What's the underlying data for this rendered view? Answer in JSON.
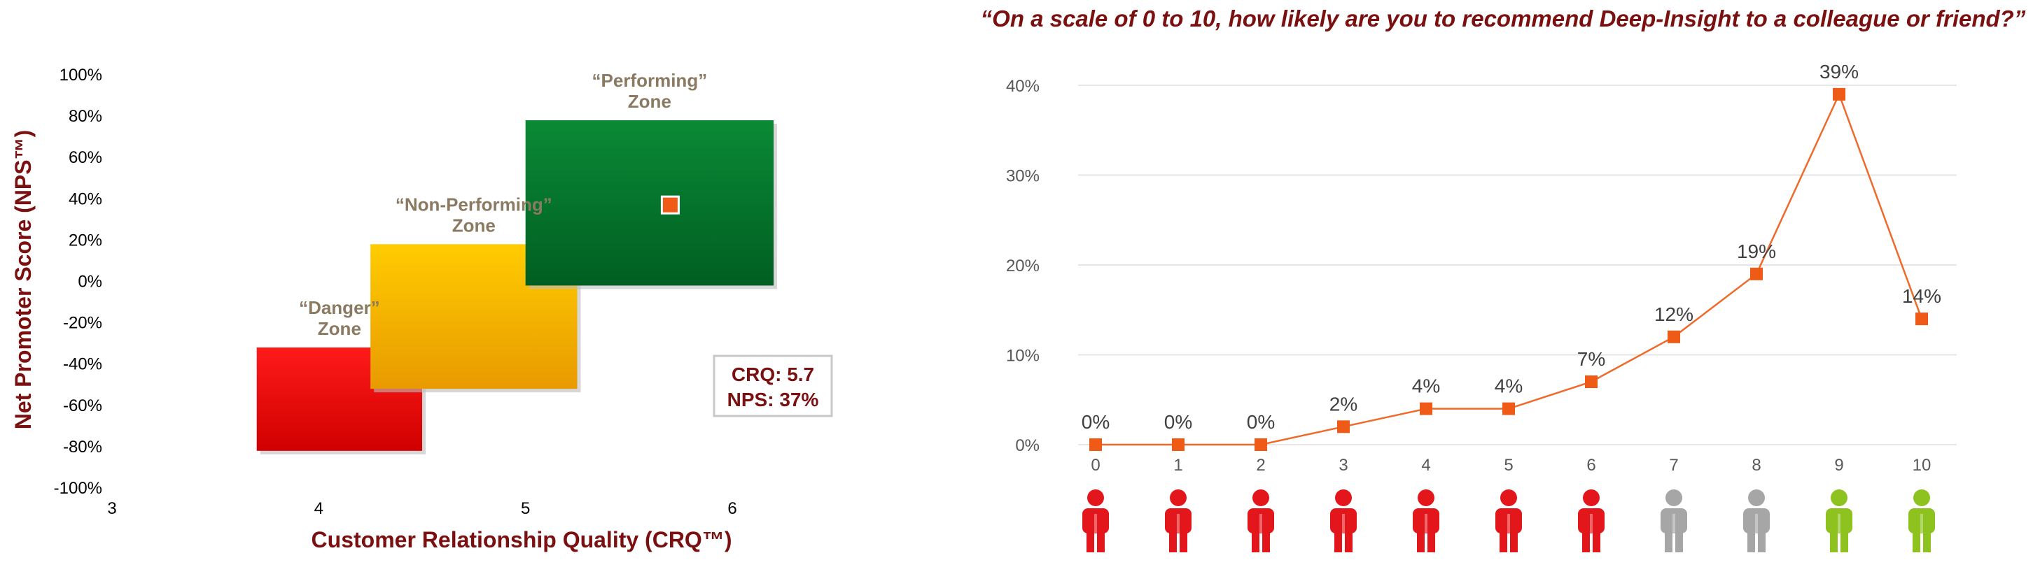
{
  "colors": {
    "dark_red": "#7b1010",
    "zone_label": "#8a7a62",
    "marker": "#ef5a17",
    "line": "#ef6a2a",
    "detractor": "#e3161c",
    "passive": "#a6a6a6",
    "promoter": "#8dc21f",
    "danger_zone": "#ee1111",
    "nonperforming_zone": "#f5b800",
    "performing_zone": "#0b7a33"
  },
  "chart_data": [
    {
      "type": "scatter",
      "xlabel": "Customer Relationship Quality (CRQ™)",
      "ylabel": "Net Promoter Score (NPS™)",
      "xlim": [
        3,
        6
      ],
      "ylim": [
        -100,
        100
      ],
      "x_ticks": [
        "3",
        "4",
        "5",
        "6"
      ],
      "y_ticks": [
        "100%",
        "80%",
        "60%",
        "40%",
        "20%",
        "0%",
        "-20%",
        "-40%",
        "-60%",
        "-80%",
        "-100%"
      ],
      "zones": [
        {
          "key": "danger",
          "label_line1": "“Danger”",
          "label_line2": "Zone",
          "x0": 3.7,
          "x1": 4.5,
          "y0": -82,
          "y1": -32
        },
        {
          "key": "nonperforming",
          "label_line1": "“Non-Performing”",
          "label_line2": "Zone",
          "x0": 4.25,
          "x1": 5.25,
          "y0": -52,
          "y1": 18
        },
        {
          "key": "performing",
          "label_line1": "“Performing”",
          "label_line2": "Zone",
          "x0": 5.0,
          "x1": 6.2,
          "y0": -2,
          "y1": 78
        }
      ],
      "point": {
        "x": 5.7,
        "y": 37
      },
      "annotation": {
        "line1": "CRQ: 5.7",
        "line2": "NPS: 37%"
      }
    },
    {
      "type": "line",
      "title": "“On a scale of 0 to 10, how likely are you to recommend Deep-Insight to a colleague or friend?”",
      "x": [
        0,
        1,
        2,
        3,
        4,
        5,
        6,
        7,
        8,
        9,
        10
      ],
      "x_labels": [
        "0",
        "1",
        "2",
        "3",
        "4",
        "5",
        "6",
        "7",
        "8",
        "9",
        "10"
      ],
      "values": [
        0,
        0,
        0,
        2,
        4,
        4,
        7,
        12,
        19,
        39,
        14
      ],
      "data_labels": [
        "0%",
        "0%",
        "0%",
        "2%",
        "4%",
        "4%",
        "7%",
        "12%",
        "19%",
        "39%",
        "14%"
      ],
      "ylim": [
        0,
        40
      ],
      "y_ticks": [
        "0%",
        "10%",
        "20%",
        "30%",
        "40%"
      ],
      "grid": true,
      "person_groups": [
        "detractor",
        "detractor",
        "detractor",
        "detractor",
        "detractor",
        "detractor",
        "detractor",
        "passive",
        "passive",
        "promoter",
        "promoter"
      ]
    }
  ]
}
